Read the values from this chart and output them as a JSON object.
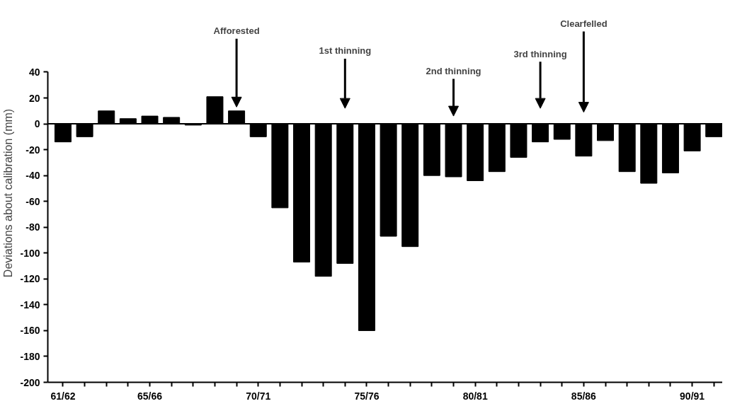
{
  "chart_data": {
    "type": "bar",
    "ylabel": "Deviations about calibration (mm)",
    "categories": [
      "61/62",
      null,
      null,
      null,
      "65/66",
      null,
      null,
      null,
      null,
      "70/71",
      null,
      null,
      null,
      null,
      "75/76",
      null,
      null,
      null,
      null,
      "80/81",
      null,
      null,
      null,
      null,
      "85/86",
      null,
      null,
      null,
      null,
      "90/91",
      null
    ],
    "values": [
      -14,
      -10,
      10,
      4,
      6,
      5,
      -1,
      21,
      10,
      -10,
      -65,
      -107,
      -118,
      -108,
      -160,
      -87,
      -95,
      -40,
      -41,
      -44,
      -37,
      -26,
      -14,
      -12,
      -25,
      -13,
      -37,
      -46,
      -38,
      -21,
      -10
    ],
    "color": "#000000",
    "ylim": [
      -200,
      40
    ],
    "yticks": [
      -200,
      -180,
      -160,
      -140,
      -120,
      -100,
      -80,
      -60,
      -40,
      -20,
      0,
      20,
      40
    ],
    "ref_lines": [
      {
        "axis": "y",
        "value": 0,
        "color": "#000000"
      }
    ],
    "annotations": [
      "Afforested",
      "1st thinning",
      "2nd thinning",
      "3rd thinning",
      "Clearfelled"
    ]
  }
}
